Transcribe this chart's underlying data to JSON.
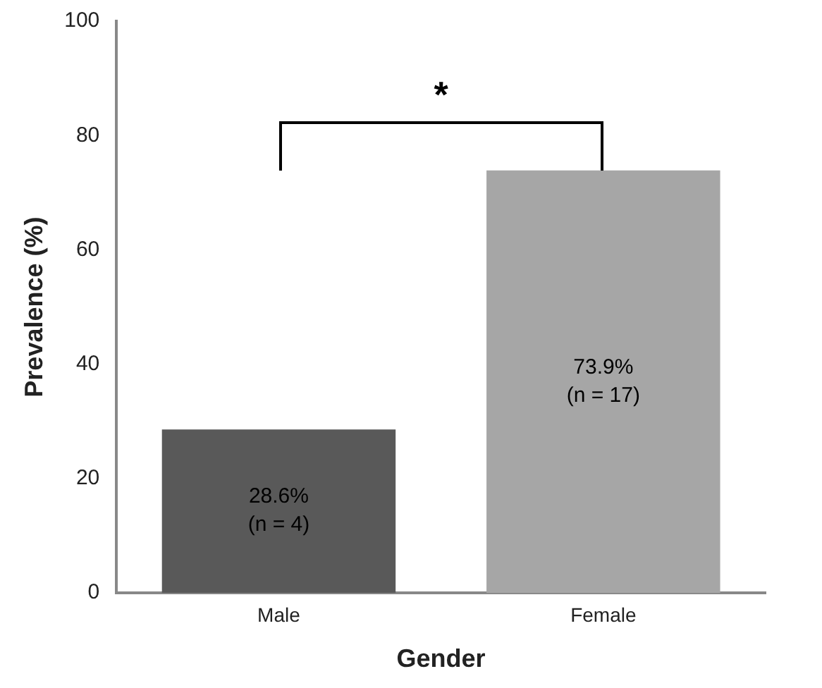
{
  "chart_data": {
    "type": "bar",
    "xlabel": "Gender",
    "ylabel": "Prevalence (%)",
    "categories": [
      "Male",
      "Female"
    ],
    "values": [
      28.6,
      73.9
    ],
    "colors": [
      "#595959",
      "#a6a6a6"
    ],
    "value_labels": [
      "28.6%\n(n = 4)",
      "73.9%\n(n = 17)"
    ],
    "ylim": [
      0,
      100
    ],
    "yticks": [
      0,
      20,
      40,
      60,
      80,
      100
    ],
    "grid": false,
    "legend": false,
    "annotations": [
      "*"
    ]
  }
}
